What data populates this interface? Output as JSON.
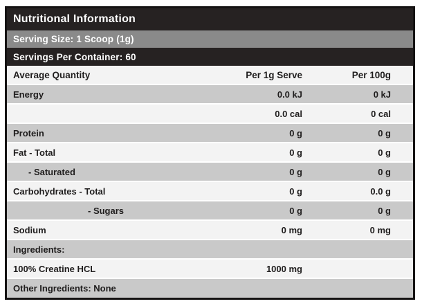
{
  "label": {
    "title": "Nutritional Information",
    "serving_size": "Serving Size: 1 Scoop (1g)",
    "servings_per_container": "Servings Per Container: 60"
  },
  "table": {
    "columns": [
      "Average Quantity",
      "Per 1g Serve",
      "Per 100g"
    ],
    "rows": [
      {
        "label": "Energy",
        "per_1g_serve": "0.0 kJ",
        "per_100g": "0 kJ"
      },
      {
        "label": "",
        "per_1g_serve": "0.0 cal",
        "per_100g": "0 cal"
      },
      {
        "label": "Protein",
        "per_1g_serve": "0 g",
        "per_100g": "0 g"
      },
      {
        "label": "Fat - Total",
        "per_1g_serve": "0 g",
        "per_100g": "0 g"
      },
      {
        "label": "- Saturated",
        "per_1g_serve": "0 g",
        "per_100g": "0 g"
      },
      {
        "label": "Carbohydrates - Total",
        "per_1g_serve": "0 g",
        "per_100g": "0.0 g"
      },
      {
        "label": "- Sugars",
        "per_1g_serve": "0 g",
        "per_100g": "0 g"
      },
      {
        "label": "Sodium",
        "per_1g_serve": "0 mg",
        "per_100g": "0 mg"
      }
    ],
    "ingredients_heading": "Ingredients:",
    "ingredient_row": {
      "label": "100% Creatine HCL",
      "per_1g_serve": "1000 mg",
      "per_100g": ""
    },
    "other_ingredients": "Other Ingredients: None"
  },
  "colors": {
    "bar_black": "#262222",
    "bar_gray": "#8a8a8a",
    "row_gray": "#c9c9c9",
    "row_light": "#f3f3f3",
    "text_dark": "#1f1d1d",
    "text_light": "#ffffff"
  }
}
